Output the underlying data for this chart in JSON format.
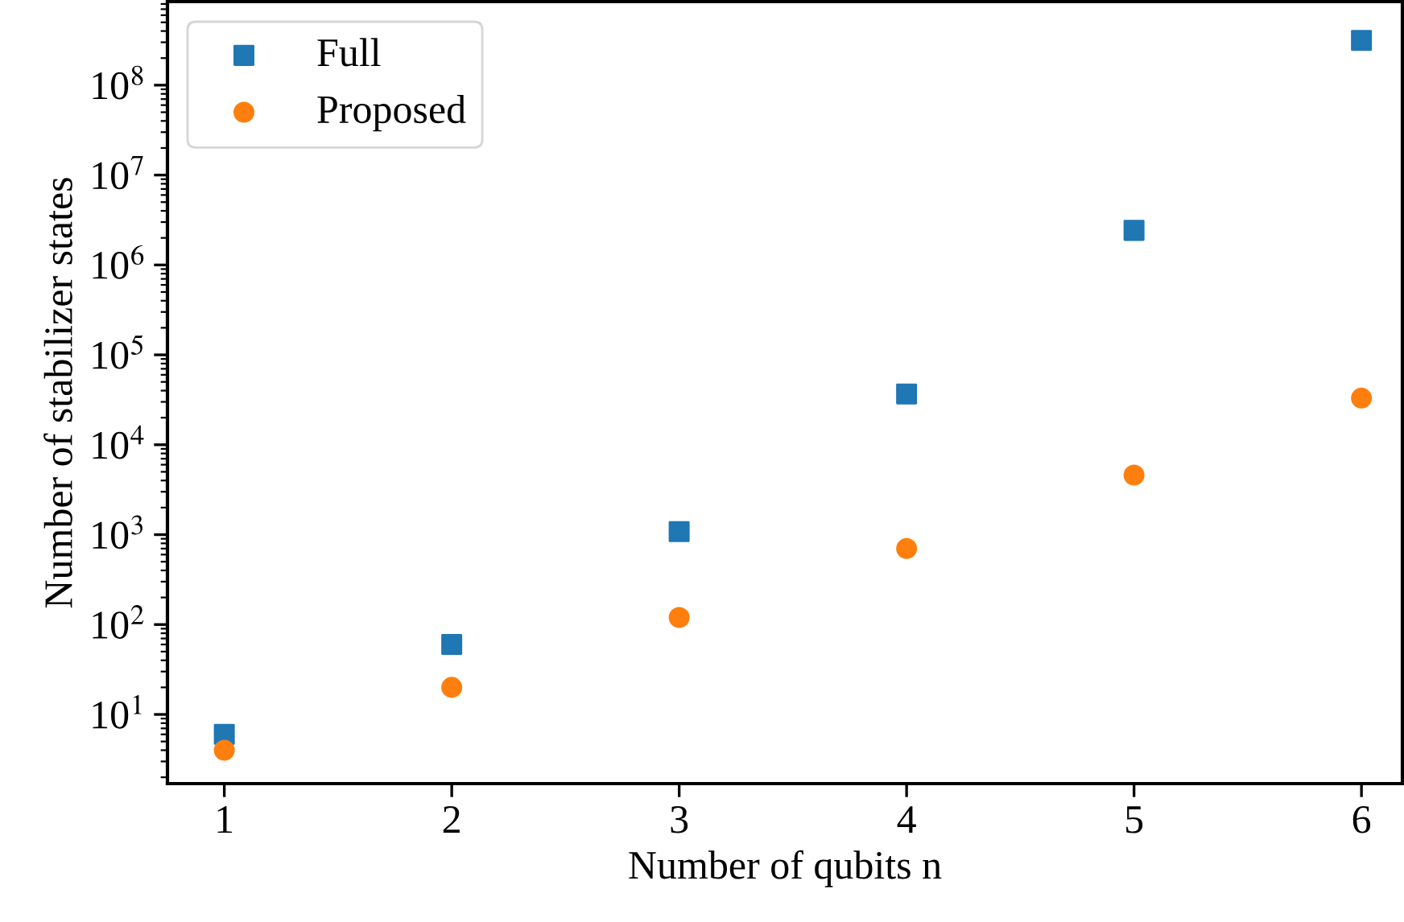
{
  "chart_data": {
    "type": "scatter",
    "xlabel": "Number of qubits n",
    "ylabel": "Number of stabilizer states",
    "x": [
      1,
      2,
      3,
      4,
      5,
      6
    ],
    "series": [
      {
        "name": "Full",
        "color": "#1f77b4",
        "marker": "square",
        "values": [
          6,
          60,
          1080,
          36720,
          2423520,
          315057600
        ]
      },
      {
        "name": "Proposed",
        "color": "#ff7f0e",
        "marker": "circle",
        "values": [
          4,
          20,
          120,
          700,
          4600,
          33000
        ]
      }
    ],
    "log": "y",
    "xlim": [
      0.75,
      6.18
    ],
    "ylim": [
      1.7,
      850000000
    ],
    "xticks": [
      1,
      2,
      3,
      4,
      5,
      6
    ],
    "yticks": [
      {
        "value": 10,
        "label": "10$^{1}$"
      },
      {
        "value": 100,
        "label": "10$^{2}$"
      },
      {
        "value": 1000,
        "label": "10$^{3}$"
      },
      {
        "value": 10000,
        "label": "10$^{4}$"
      },
      {
        "value": 100000,
        "label": "10$^{5}$"
      },
      {
        "value": 1000000,
        "label": "10$^{6}$"
      },
      {
        "value": 10000000,
        "label": "10$^{7}$"
      },
      {
        "value": 100000000,
        "label": "10$^{8}$"
      }
    ],
    "grid": false,
    "legend": "top left"
  }
}
